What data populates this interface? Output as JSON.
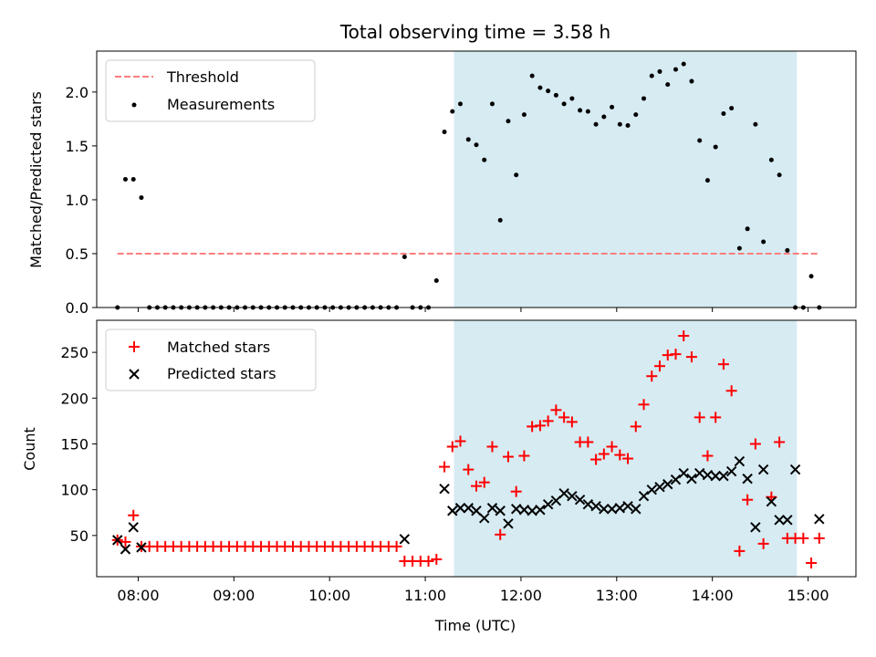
{
  "figure": {
    "title": "Total observing time = 3.58 h",
    "xlabel": "Time (UTC)"
  },
  "colors": {
    "threshold": "#ff7f7f",
    "measurements": "#000000",
    "matched": "#ff0000",
    "predicted": "#000000",
    "span": "#add8e6"
  },
  "chart_data": [
    {
      "type": "scatter",
      "ylabel": "Matched/Predicted stars",
      "xlim": [
        "07:34",
        "15:30"
      ],
      "ylim": [
        0,
        2.38
      ],
      "yticks": [
        0.0,
        0.5,
        1.0,
        1.5,
        2.0
      ],
      "yticklabels": [
        "0.0",
        "0.5",
        "1.0",
        "1.5",
        "2.0"
      ],
      "xticks": [
        "08:00",
        "09:00",
        "10:00",
        "11:00",
        "12:00",
        "13:00",
        "14:00",
        "15:00"
      ],
      "show_xticklabels": false,
      "span": [
        "11:18",
        "14:53"
      ],
      "legend": {
        "position": "upper left",
        "entries": [
          "Threshold",
          "Measurements"
        ]
      },
      "threshold": {
        "name": "Threshold",
        "x": [
          "07:47",
          "15:07"
        ],
        "y": 0.5
      },
      "series": [
        {
          "name": "Measurements",
          "marker": "dot",
          "x": [
            "07:47",
            "07:52",
            "07:57",
            "08:02",
            "08:07",
            "08:12",
            "08:17",
            "08:22",
            "08:27",
            "08:32",
            "08:37",
            "08:42",
            "08:47",
            "08:52",
            "08:57",
            "09:02",
            "09:07",
            "09:12",
            "09:17",
            "09:22",
            "09:27",
            "09:32",
            "09:37",
            "09:42",
            "09:47",
            "09:52",
            "09:57",
            "10:02",
            "10:07",
            "10:12",
            "10:17",
            "10:22",
            "10:27",
            "10:32",
            "10:37",
            "10:42",
            "10:47",
            "10:52",
            "10:57",
            "11:02",
            "11:07",
            "11:12",
            "11:17",
            "11:22",
            "11:27",
            "11:32",
            "11:37",
            "11:42",
            "11:47",
            "11:52",
            "11:57",
            "12:02",
            "12:07",
            "12:12",
            "12:17",
            "12:22",
            "12:27",
            "12:32",
            "12:37",
            "12:42",
            "12:47",
            "12:52",
            "12:57",
            "13:02",
            "13:07",
            "13:12",
            "13:17",
            "13:22",
            "13:27",
            "13:32",
            "13:37",
            "13:42",
            "13:47",
            "13:52",
            "13:57",
            "14:02",
            "14:07",
            "14:12",
            "14:17",
            "14:22",
            "14:27",
            "14:32",
            "14:37",
            "14:42",
            "14:47",
            "14:52",
            "14:57",
            "15:02",
            "15:07"
          ],
          "y": [
            0.0,
            1.19,
            1.19,
            1.02,
            0.0,
            0.0,
            0.0,
            0.0,
            0.0,
            0.0,
            0.0,
            0.0,
            0.0,
            0.0,
            0.0,
            0.0,
            0.0,
            0.0,
            0.0,
            0.0,
            0.0,
            0.0,
            0.0,
            0.0,
            0.0,
            0.0,
            0.0,
            0.0,
            0.0,
            0.0,
            0.0,
            0.0,
            0.0,
            0.0,
            0.0,
            0.0,
            0.47,
            0.0,
            0.0,
            0.0,
            0.25,
            1.63,
            1.82,
            1.89,
            1.56,
            1.51,
            1.37,
            1.89,
            0.81,
            1.73,
            1.23,
            1.79,
            2.15,
            2.04,
            2.01,
            1.97,
            1.89,
            1.94,
            1.83,
            1.82,
            1.7,
            1.77,
            1.86,
            1.7,
            1.69,
            1.79,
            1.94,
            2.15,
            2.19,
            2.07,
            2.21,
            2.26,
            2.1,
            1.55,
            1.18,
            1.49,
            1.8,
            1.85,
            0.55,
            0.73,
            1.7,
            0.61,
            1.37,
            1.23,
            0.53,
            0.0,
            0.0,
            0.29,
            0.0
          ]
        }
      ]
    },
    {
      "type": "scatter",
      "ylabel": "Count",
      "xlim": [
        "07:34",
        "15:30"
      ],
      "ylim": [
        5,
        285
      ],
      "yticks": [
        50,
        100,
        150,
        200,
        250
      ],
      "yticklabels": [
        "50",
        "100",
        "150",
        "200",
        "250"
      ],
      "xticks": [
        "08:00",
        "09:00",
        "10:00",
        "11:00",
        "12:00",
        "13:00",
        "14:00",
        "15:00"
      ],
      "xticklabels": [
        "08:00",
        "09:00",
        "10:00",
        "11:00",
        "12:00",
        "13:00",
        "14:00",
        "15:00"
      ],
      "span": [
        "11:18",
        "14:53"
      ],
      "legend": {
        "position": "upper left",
        "entries": [
          "Matched stars",
          "Predicted stars"
        ]
      },
      "series": [
        {
          "name": "Matched stars",
          "marker": "plus",
          "x": [
            "07:47",
            "07:52",
            "07:57",
            "08:02",
            "08:07",
            "08:12",
            "08:17",
            "08:22",
            "08:27",
            "08:32",
            "08:37",
            "08:42",
            "08:47",
            "08:52",
            "08:57",
            "09:02",
            "09:07",
            "09:12",
            "09:17",
            "09:22",
            "09:27",
            "09:32",
            "09:37",
            "09:42",
            "09:47",
            "09:52",
            "09:57",
            "10:02",
            "10:07",
            "10:12",
            "10:17",
            "10:22",
            "10:27",
            "10:32",
            "10:37",
            "10:42",
            "10:47",
            "10:52",
            "10:57",
            "11:02",
            "11:07",
            "11:12",
            "11:17",
            "11:22",
            "11:27",
            "11:32",
            "11:37",
            "11:42",
            "11:47",
            "11:52",
            "11:57",
            "12:02",
            "12:07",
            "12:12",
            "12:17",
            "12:22",
            "12:27",
            "12:32",
            "12:37",
            "12:42",
            "12:47",
            "12:52",
            "12:57",
            "13:02",
            "13:07",
            "13:12",
            "13:17",
            "13:22",
            "13:27",
            "13:32",
            "13:37",
            "13:42",
            "13:47",
            "13:52",
            "13:57",
            "14:02",
            "14:07",
            "14:12",
            "14:17",
            "14:22",
            "14:27",
            "14:32",
            "14:37",
            "14:42",
            "14:47",
            "14:52",
            "14:57",
            "15:02",
            "15:07"
          ],
          "y": [
            45,
            43,
            72,
            38,
            38,
            38,
            38,
            38,
            38,
            38,
            38,
            38,
            38,
            38,
            38,
            38,
            38,
            38,
            38,
            38,
            38,
            38,
            38,
            38,
            38,
            38,
            38,
            38,
            38,
            38,
            38,
            38,
            38,
            38,
            38,
            38,
            22,
            22,
            22,
            22,
            24,
            125,
            147,
            153,
            122,
            104,
            108,
            147,
            51,
            136,
            98,
            137,
            169,
            170,
            175,
            187,
            179,
            174,
            152,
            152,
            133,
            139,
            147,
            138,
            134,
            169,
            193,
            224,
            235,
            247,
            248,
            268,
            245,
            179,
            137,
            179,
            237,
            208,
            33,
            89,
            150,
            41,
            92,
            152,
            47,
            47,
            47,
            20,
            47
          ]
        },
        {
          "name": "Predicted stars",
          "marker": "x",
          "x": [
            "07:47",
            "07:52",
            "07:57",
            "08:02",
            "10:47",
            "11:12",
            "11:17",
            "11:22",
            "11:27",
            "11:32",
            "11:37",
            "11:42",
            "11:47",
            "11:52",
            "11:57",
            "12:02",
            "12:07",
            "12:12",
            "12:17",
            "12:22",
            "12:27",
            "12:32",
            "12:37",
            "12:42",
            "12:47",
            "12:52",
            "12:57",
            "13:02",
            "13:07",
            "13:12",
            "13:17",
            "13:22",
            "13:27",
            "13:32",
            "13:37",
            "13:42",
            "13:47",
            "13:52",
            "13:57",
            "14:02",
            "14:07",
            "14:12",
            "14:17",
            "14:22",
            "14:27",
            "14:32",
            "14:37",
            "14:42",
            "14:47",
            "14:52",
            "15:07"
          ],
          "y": [
            45,
            35,
            59,
            37,
            46,
            101,
            77,
            80,
            80,
            77,
            69,
            80,
            77,
            63,
            79,
            78,
            77,
            78,
            84,
            88,
            96,
            93,
            89,
            84,
            82,
            79,
            79,
            80,
            82,
            79,
            93,
            100,
            103,
            106,
            111,
            118,
            112,
            118,
            116,
            115,
            115,
            120,
            131,
            112,
            59,
            122,
            87,
            67,
            67,
            122,
            68
          ]
        }
      ]
    }
  ]
}
